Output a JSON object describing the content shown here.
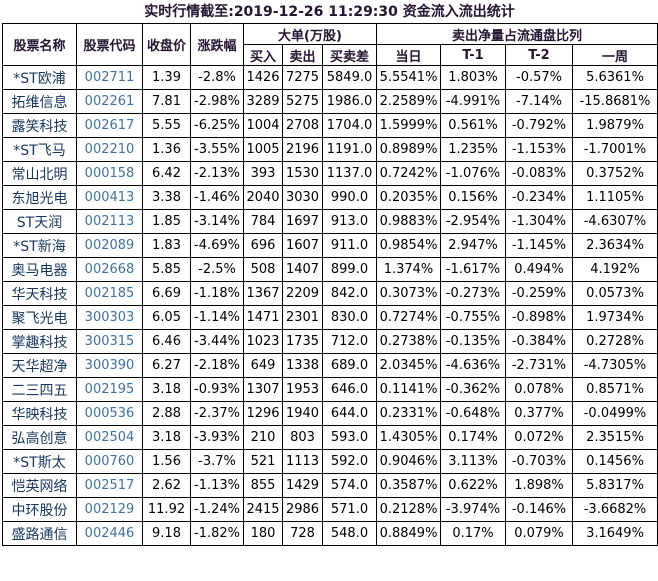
{
  "title": "实时行情截至:2019-12-26 11:29:30 资金流入流出统计",
  "colors": {
    "stock_name_text": "#17375e",
    "stock_code_text": "#41719c",
    "header_text": "#241530",
    "data_text": "#000000",
    "border": "#000000",
    "background": "#ffffff"
  },
  "table": {
    "headers": {
      "stock_name": "股票名称",
      "stock_code": "股票代码",
      "close_price": "收盘价",
      "change_pct": "涨跌幅",
      "big_order_group": "大单(万股)",
      "buy": "买入",
      "sell": "卖出",
      "buy_sell_diff": "买卖差",
      "net_sell_ratio_group": "卖出净量占流通盘比列",
      "today": "当日",
      "t_minus_1": "T-1",
      "t_minus_2": "T-2",
      "one_week": "一周"
    },
    "rows": [
      [
        "*ST欧浦",
        "002711",
        "1.39",
        "-2.8%",
        "1426",
        "7275",
        "5849.0",
        "5.5541%",
        "1.803%",
        "-0.57%",
        "5.6361%"
      ],
      [
        "拓维信息",
        "002261",
        "7.81",
        "-2.98%",
        "3289",
        "5275",
        "1986.0",
        "2.2589%",
        "-4.991%",
        "-7.14%",
        "-15.8681%"
      ],
      [
        "露笑科技",
        "002617",
        "5.55",
        "-6.25%",
        "1004",
        "2708",
        "1704.0",
        "1.5999%",
        "0.561%",
        "-0.792%",
        "1.9879%"
      ],
      [
        "*ST飞马",
        "002210",
        "1.36",
        "-3.55%",
        "1005",
        "2196",
        "1191.0",
        "0.8989%",
        "1.235%",
        "-1.153%",
        "-1.7001%"
      ],
      [
        "常山北明",
        "000158",
        "6.42",
        "-2.13%",
        "393",
        "1530",
        "1137.0",
        "0.7242%",
        "-1.076%",
        "-0.083%",
        "0.3752%"
      ],
      [
        "东旭光电",
        "000413",
        "3.38",
        "-1.46%",
        "2040",
        "3030",
        "990.0",
        "0.2035%",
        "0.156%",
        "-0.234%",
        "1.1105%"
      ],
      [
        "ST天润",
        "002113",
        "1.85",
        "-3.14%",
        "784",
        "1697",
        "913.0",
        "0.9883%",
        "-2.954%",
        "-1.304%",
        "-4.6307%"
      ],
      [
        "*ST新海",
        "002089",
        "1.83",
        "-4.69%",
        "696",
        "1607",
        "911.0",
        "0.9854%",
        "2.947%",
        "-1.145%",
        "2.3634%"
      ],
      [
        "奥马电器",
        "002668",
        "5.85",
        "-2.5%",
        "508",
        "1407",
        "899.0",
        "1.374%",
        "-1.617%",
        "0.494%",
        "4.192%"
      ],
      [
        "华天科技",
        "002185",
        "6.69",
        "-1.18%",
        "1367",
        "2209",
        "842.0",
        "0.3073%",
        "-0.273%",
        "-0.259%",
        "0.0573%"
      ],
      [
        "聚飞光电",
        "300303",
        "6.05",
        "-1.14%",
        "1471",
        "2301",
        "830.0",
        "0.7274%",
        "-0.755%",
        "-0.898%",
        "1.9734%"
      ],
      [
        "掌趣科技",
        "300315",
        "6.46",
        "-3.44%",
        "1023",
        "1735",
        "712.0",
        "0.2738%",
        "-0.135%",
        "-0.384%",
        "0.2728%"
      ],
      [
        "天华超净",
        "300390",
        "6.27",
        "-2.18%",
        "649",
        "1338",
        "689.0",
        "2.0345%",
        "-4.636%",
        "-2.731%",
        "-4.7305%"
      ],
      [
        "二三四五",
        "002195",
        "3.18",
        "-0.93%",
        "1307",
        "1953",
        "646.0",
        "0.1141%",
        "-0.362%",
        "0.078%",
        "0.8571%"
      ],
      [
        "华映科技",
        "000536",
        "2.88",
        "-2.37%",
        "1296",
        "1940",
        "644.0",
        "0.2331%",
        "-0.648%",
        "0.377%",
        "-0.0499%"
      ],
      [
        "弘高创意",
        "002504",
        "3.18",
        "-3.93%",
        "210",
        "803",
        "593.0",
        "1.4305%",
        "0.174%",
        "0.072%",
        "2.3515%"
      ],
      [
        "*ST斯太",
        "000760",
        "1.56",
        "-3.7%",
        "521",
        "1113",
        "592.0",
        "0.9046%",
        "3.113%",
        "-0.703%",
        "0.1456%"
      ],
      [
        "恺英网络",
        "002517",
        "2.62",
        "-1.13%",
        "855",
        "1429",
        "574.0",
        "0.3587%",
        "0.622%",
        "1.898%",
        "5.8317%"
      ],
      [
        "中环股份",
        "002129",
        "11.92",
        "-1.24%",
        "2415",
        "2986",
        "571.0",
        "0.2128%",
        "-3.974%",
        "-0.146%",
        "-3.6682%"
      ],
      [
        "盛路通信",
        "002446",
        "9.18",
        "-1.82%",
        "180",
        "728",
        "548.0",
        "0.8849%",
        "0.17%",
        "0.079%",
        "3.1649%"
      ]
    ]
  }
}
